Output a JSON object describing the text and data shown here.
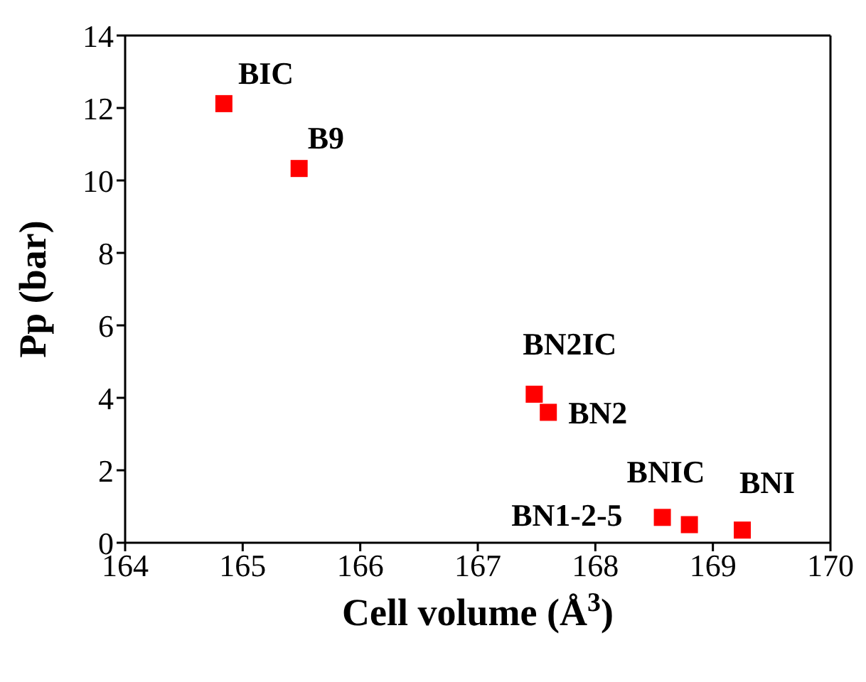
{
  "chart_data": {
    "type": "scatter",
    "xlabel": "Cell volume (Å$^{3}$)",
    "ylabel": "Pp (bar)",
    "x": [
      164.84,
      165.48,
      167.48,
      167.6,
      168.57,
      168.8,
      169.25
    ],
    "values": [
      12.12,
      10.33,
      4.1,
      3.6,
      0.7,
      0.5,
      0.35
    ],
    "color": "#ff0000",
    "marker": "square",
    "xlim": [
      164,
      170
    ],
    "xticks": [
      164,
      165,
      166,
      167,
      168,
      169,
      170
    ],
    "ylim": [
      0,
      14
    ],
    "yticks": [
      0,
      2,
      4,
      6,
      8,
      10,
      12,
      14
    ],
    "grid": false,
    "annotations": [
      {
        "text": "BIC",
        "x": 164.84,
        "y": 12.12
      },
      {
        "text": "B9",
        "x": 165.48,
        "y": 10.33
      },
      {
        "text": "BN2IC",
        "x": 167.48,
        "y": 4.1
      },
      {
        "text": "BN2",
        "x": 167.6,
        "y": 3.6
      },
      {
        "text": "BN1-2-5",
        "x": 168.57,
        "y": 0.7
      },
      {
        "text": "BNIC",
        "x": 168.8,
        "y": 0.5
      },
      {
        "text": "BNI",
        "x": 169.25,
        "y": 0.35
      }
    ]
  }
}
